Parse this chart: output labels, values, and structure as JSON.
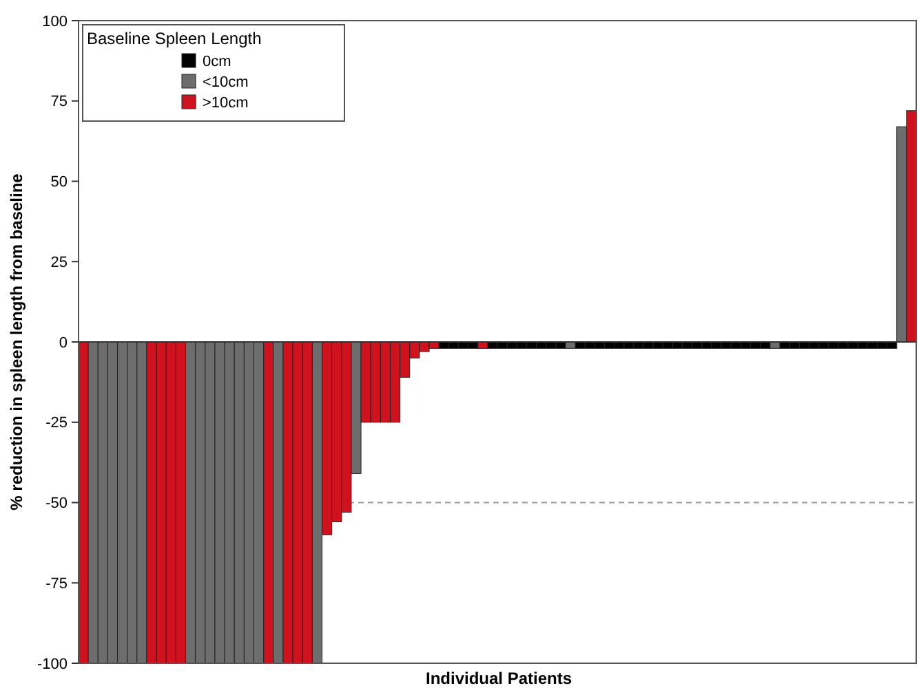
{
  "chart_data": {
    "type": "bar",
    "xlabel": "Individual Patients",
    "ylabel": "% reduction in spleen length from baseline",
    "legend_title": "Baseline Spleen Length",
    "legend": "top left",
    "grid": false,
    "categories": [
      null,
      null,
      null,
      null,
      null,
      null,
      null,
      null,
      null,
      null,
      null,
      null,
      null,
      null,
      null,
      null,
      null,
      null,
      null,
      null,
      null,
      null,
      null,
      null,
      null,
      null,
      null,
      null,
      null,
      null,
      null,
      null,
      null,
      null,
      null,
      null,
      null,
      null,
      null,
      null,
      null,
      null,
      null,
      null,
      null,
      null,
      null,
      null,
      null,
      null,
      null,
      null,
      null,
      null,
      null,
      null,
      null,
      null,
      null,
      null,
      null,
      null,
      null,
      null,
      null,
      null,
      null,
      null,
      null,
      null,
      null,
      null,
      null,
      null,
      null,
      null,
      null,
      null,
      null,
      null,
      null,
      null,
      null,
      null,
      null,
      null
    ],
    "ylim": [
      -100,
      100
    ],
    "yticks": [
      -100,
      -75,
      -50,
      -25,
      0,
      25,
      50,
      75,
      100
    ],
    "ref_lines": [
      {
        "axis": "y",
        "value": -50,
        "color": "#999999",
        "line_style": "dashed"
      }
    ],
    "series": [
      {
        "name": "0cm",
        "color": "#000000",
        "values": [
          null,
          null,
          null,
          null,
          null,
          null,
          null,
          null,
          null,
          null,
          null,
          null,
          null,
          null,
          null,
          null,
          null,
          null,
          null,
          null,
          null,
          null,
          null,
          null,
          null,
          null,
          null,
          null,
          null,
          null,
          null,
          null,
          null,
          null,
          null,
          null,
          null,
          -2,
          -2,
          -2,
          -2,
          null,
          -2,
          -2,
          -2,
          -2,
          -2,
          -2,
          -2,
          -2,
          null,
          -2,
          -2,
          -2,
          -2,
          -2,
          -2,
          -2,
          -2,
          -2,
          -2,
          -2,
          -2,
          -2,
          -2,
          -2,
          -2,
          -2,
          -2,
          -2,
          -2,
          null,
          -2,
          -2,
          -2,
          -2,
          -2,
          -2,
          -2,
          -2,
          -2,
          -2,
          -2,
          -2,
          null,
          null
        ]
      },
      {
        "name": "<10cm",
        "color": "#6d6d6d",
        "values": [
          null,
          -100,
          -100,
          -100,
          -100,
          -100,
          -100,
          null,
          null,
          null,
          null,
          -100,
          -100,
          -100,
          -100,
          -100,
          -100,
          -100,
          -100,
          null,
          -100,
          null,
          null,
          null,
          -100,
          null,
          null,
          null,
          -41,
          null,
          null,
          null,
          null,
          null,
          null,
          null,
          null,
          null,
          null,
          null,
          null,
          null,
          null,
          null,
          null,
          null,
          null,
          null,
          null,
          null,
          -2,
          null,
          null,
          null,
          null,
          null,
          null,
          null,
          null,
          null,
          null,
          null,
          null,
          null,
          null,
          null,
          null,
          null,
          null,
          null,
          null,
          -2,
          null,
          null,
          null,
          null,
          null,
          null,
          null,
          null,
          null,
          null,
          null,
          null,
          67,
          null
        ]
      },
      {
        "name": ">10cm",
        "color": "#d0121e",
        "values": [
          -100,
          null,
          null,
          null,
          null,
          null,
          null,
          -100,
          -100,
          -100,
          -100,
          null,
          null,
          null,
          null,
          null,
          null,
          null,
          null,
          -100,
          null,
          -100,
          -100,
          -100,
          null,
          -60,
          -56,
          -53,
          null,
          -25,
          -25,
          -25,
          -25,
          -11,
          -5,
          -3,
          -2,
          null,
          null,
          null,
          null,
          -2,
          null,
          null,
          null,
          null,
          null,
          null,
          null,
          null,
          null,
          null,
          null,
          null,
          null,
          null,
          null,
          null,
          null,
          null,
          null,
          null,
          null,
          null,
          null,
          null,
          null,
          null,
          null,
          null,
          null,
          null,
          null,
          null,
          null,
          null,
          null,
          null,
          null,
          null,
          null,
          null,
          null,
          null,
          null,
          72
        ]
      }
    ]
  }
}
